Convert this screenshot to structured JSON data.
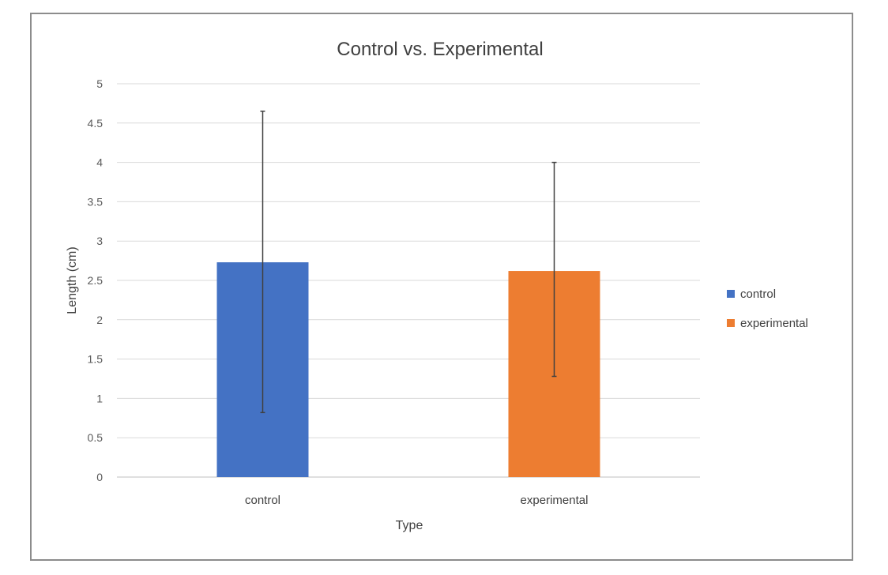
{
  "chart_data": {
    "type": "bar",
    "title": "Control vs. Experimental",
    "xlabel": "Type",
    "ylabel": "Length (cm)",
    "ylim": [
      0,
      5
    ],
    "yticks": [
      0,
      0.5,
      1,
      1.5,
      2,
      2.5,
      3,
      3.5,
      4,
      4.5,
      5
    ],
    "ytick_labels": [
      "0",
      "0.5",
      "1",
      "1.5",
      "2",
      "2.5",
      "3",
      "3.5",
      "4",
      "4.5",
      "5"
    ],
    "grid": true,
    "legend_position": "right",
    "categories": [
      "control",
      "experimental"
    ],
    "series": [
      {
        "name": "control",
        "color": "#4472C4",
        "category": "control",
        "value": 2.73,
        "error_low": 0.82,
        "error_high": 4.65
      },
      {
        "name": "experimental",
        "color": "#ED7D31",
        "category": "experimental",
        "value": 2.62,
        "error_low": 1.28,
        "error_high": 4.0
      }
    ]
  }
}
